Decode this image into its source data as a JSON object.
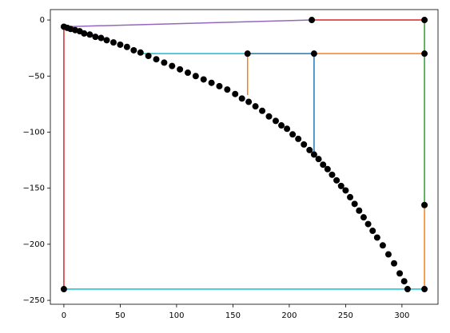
{
  "chart_data": {
    "type": "line",
    "xlim": [
      -12,
      332
    ],
    "ylim": [
      -253.5,
      9.3
    ],
    "xticks": [
      0,
      50,
      100,
      150,
      200,
      250,
      300
    ],
    "yticks": [
      {
        "value": -250,
        "label": "−250"
      },
      {
        "value": -200,
        "label": "−200"
      },
      {
        "value": -150,
        "label": "−150"
      },
      {
        "value": -100,
        "label": "−100"
      },
      {
        "value": -50,
        "label": "−50"
      },
      0
    ],
    "series": [
      {
        "color": "#9467bd",
        "x": [
          0,
          220
        ],
        "values": [
          -6,
          0
        ]
      },
      {
        "color": "#d62728",
        "x": [
          220,
          320
        ],
        "values": [
          0,
          0
        ]
      },
      {
        "color": "#2ca02c",
        "x": [
          320,
          320
        ],
        "values": [
          0,
          -165
        ]
      },
      {
        "color": "#ff7f0e",
        "x": [
          320,
          320
        ],
        "values": [
          -165,
          -240
        ]
      },
      {
        "color": "#17becf",
        "x": [
          0,
          320
        ],
        "values": [
          -240,
          -240
        ]
      },
      {
        "color": "#d62728",
        "x": [
          0,
          0
        ],
        "values": [
          -6,
          -240
        ]
      },
      {
        "color": "#17becf",
        "x": [
          70,
          163
        ],
        "values": [
          -30,
          -30
        ]
      },
      {
        "color": "#1f77b4",
        "x": [
          163,
          222
        ],
        "values": [
          -30,
          -30
        ]
      },
      {
        "color": "#1f77b4",
        "x": [
          222,
          222
        ],
        "values": [
          -30,
          -120
        ]
      },
      {
        "color": "#ff7f0e",
        "x": [
          163,
          163
        ],
        "values": [
          -30,
          -67
        ]
      },
      {
        "color": "#ff7f0e",
        "x": [
          222,
          320
        ],
        "values": [
          -30,
          -30
        ]
      },
      {
        "color": "#000000",
        "linestyle": "none",
        "marker": "o",
        "x": [
          220,
          320,
          163,
          222,
          320,
          320,
          0,
          320
        ],
        "values": [
          0,
          0,
          -30,
          -30,
          -30,
          -165,
          -240,
          -240
        ]
      },
      {
        "color": "#000000",
        "linestyle": "none",
        "marker": "o",
        "x": [
          0,
          3,
          6,
          10,
          14,
          18,
          23,
          28,
          33,
          38,
          44,
          50,
          56,
          62,
          68,
          75,
          82,
          89,
          96,
          103,
          110,
          117,
          124,
          131,
          138,
          145,
          152,
          158,
          164,
          170,
          176,
          182,
          188,
          193,
          198,
          203,
          208,
          213,
          218,
          222,
          226,
          230,
          234,
          238,
          242,
          246,
          250,
          254,
          258,
          262,
          266,
          270,
          274,
          278,
          283,
          288,
          293,
          298,
          302,
          305
        ],
        "values": [
          -6,
          -7,
          -8,
          -9,
          -10,
          -12,
          -13,
          -15,
          -16,
          -18,
          -20,
          -22,
          -24,
          -27,
          -29,
          -32,
          -35,
          -38,
          -41,
          -44,
          -47,
          -50,
          -53,
          -56,
          -59,
          -62,
          -66,
          -70,
          -73,
          -77,
          -81,
          -86,
          -90,
          -94,
          -97,
          -102,
          -106,
          -111,
          -116,
          -120,
          -124,
          -129,
          -133,
          -138,
          -143,
          -148,
          -152,
          -158,
          -164,
          -170,
          -176,
          -182,
          -188,
          -194,
          -201,
          -209,
          -217,
          -226,
          -233,
          -240
        ]
      }
    ]
  }
}
